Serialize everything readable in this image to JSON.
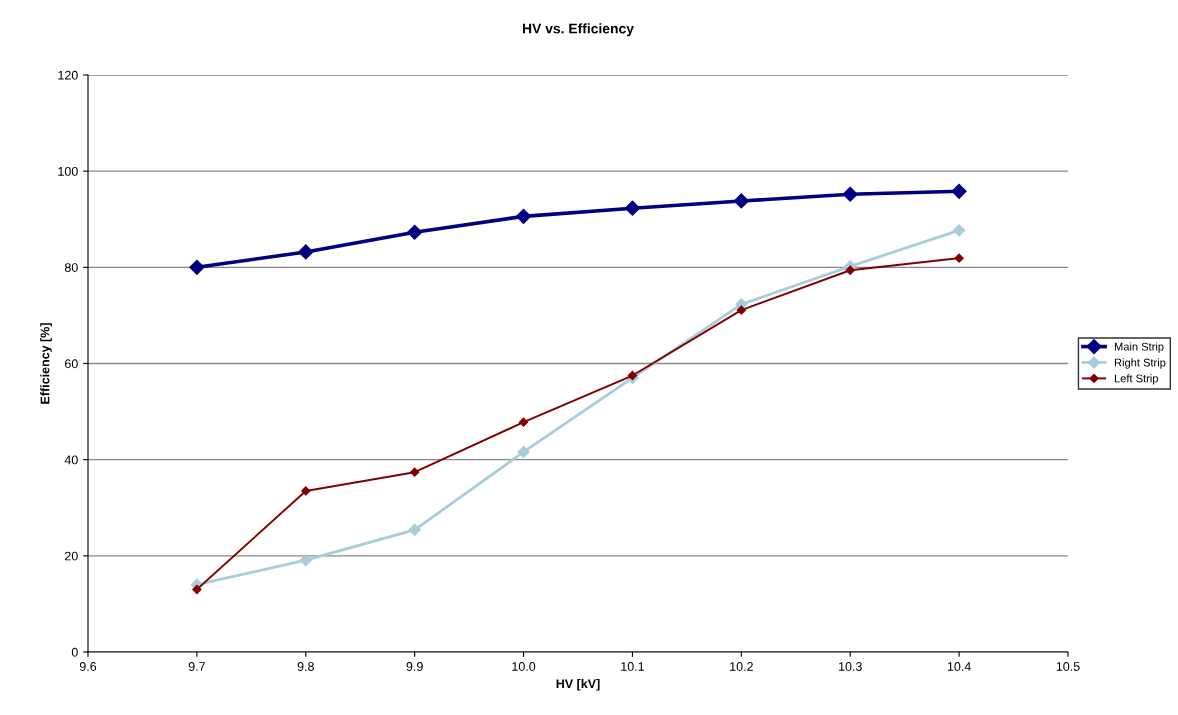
{
  "chart_data": {
    "type": "line",
    "title": "HV vs. Efficiency",
    "xlabel": "HV [kV]",
    "ylabel": "Efficiency [%]",
    "x": [
      9.7,
      9.8,
      9.9,
      10.0,
      10.1,
      10.2,
      10.3,
      10.4
    ],
    "series": [
      {
        "name": "Main Strip",
        "color": "#000080",
        "values": [
          80,
          83.2,
          87.3,
          90.6,
          92.3,
          93.8,
          95.2,
          95.8
        ]
      },
      {
        "name": "Right Strip",
        "color": "#a8cdd8",
        "values": [
          14,
          19.1,
          25.4,
          41.6,
          57,
          72.3,
          80.2,
          87.7
        ]
      },
      {
        "name": "Left Strip",
        "color": "#800000",
        "values": [
          13,
          33.5,
          37.4,
          47.8,
          57.5,
          71.1,
          79.4,
          81.9
        ]
      }
    ],
    "xlim": [
      9.6,
      10.5
    ],
    "xticks": [
      {
        "value": 9.6,
        "label": "9.6"
      },
      {
        "value": 9.7,
        "label": "9.7"
      },
      {
        "value": 9.8,
        "label": "9.8"
      },
      {
        "value": 9.9,
        "label": "9.9"
      },
      {
        "value": 10.0,
        "label": "10.0"
      },
      {
        "value": 10.1,
        "label": "10.1"
      },
      {
        "value": 10.2,
        "label": "10.2"
      },
      {
        "value": 10.3,
        "label": "10.3"
      },
      {
        "value": 10.4,
        "label": "10.4"
      },
      {
        "value": 10.5,
        "label": "10.5"
      }
    ],
    "ylim": [
      0,
      120
    ],
    "yticks": [
      0,
      20,
      40,
      60,
      80,
      100,
      120
    ],
    "grid": "y",
    "legend": "right",
    "marker": "diamond"
  }
}
